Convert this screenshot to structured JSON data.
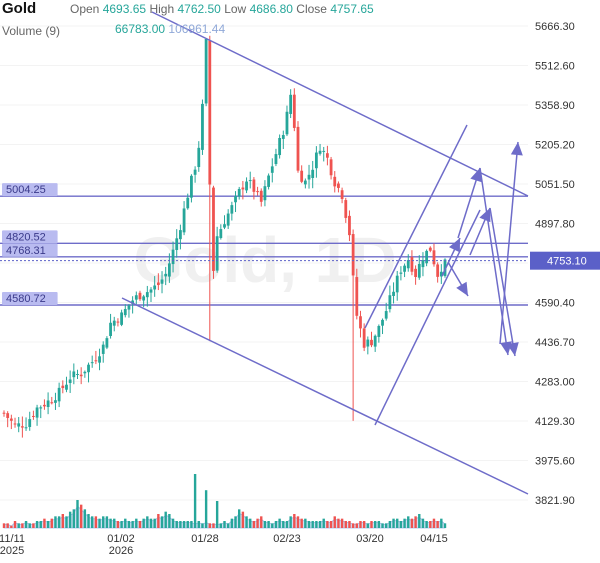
{
  "header": {
    "symbol": "Gold",
    "open_label": "Open",
    "open_value": "4693.65",
    "high_label": "High",
    "high_value": "4762.50",
    "low_label": "Low",
    "low_value": "4686.80",
    "close_label": "Close",
    "close_value": "4757.65",
    "volume_label": "Volume (9)",
    "volume_value_1": "66783.00",
    "volume_value_2": "106961.44"
  },
  "watermark": "Gold, 1D",
  "colors": {
    "up": "#26a69a",
    "down": "#ef5350",
    "drawing": "#6e6cc9",
    "price_tag": "#5b60c8",
    "volume_area": "#bcd3f0"
  },
  "chart_data": {
    "type": "candlestick",
    "title": "Gold",
    "interval": "1D",
    "y_axis_ticks": [
      "5666.30",
      "5512.60",
      "5358.90",
      "5205.20",
      "5051.50",
      "4897.80",
      "4744.10",
      "4590.40",
      "4436.70",
      "4283.00",
      "4129.30",
      "3975.60",
      "3821.90"
    ],
    "ylim": [
      3821.9,
      5666.3
    ],
    "x_axis_ticks": [
      {
        "label": "11/11",
        "sublabel": "2025"
      },
      {
        "label": "01/02",
        "sublabel": "2026"
      },
      {
        "label": "01/28",
        "sublabel": ""
      },
      {
        "label": "02/23",
        "sublabel": ""
      },
      {
        "label": "03/20",
        "sublabel": ""
      },
      {
        "label": "04/15",
        "sublabel": ""
      }
    ],
    "current_price": "4753.10",
    "horizontal_levels": [
      {
        "label": "5004.25",
        "value": 5004.25
      },
      {
        "label": "4820.52",
        "value": 4820.52
      },
      {
        "label": "4768.31",
        "value": 4768.31
      },
      {
        "label": "4580.72",
        "value": 4580.72
      }
    ],
    "last_candle": {
      "open": 4693.65,
      "high": 4762.5,
      "low": 4686.8,
      "close": 4757.65
    },
    "close_path": [
      [
        0,
        4160
      ],
      [
        3,
        4110
      ],
      [
        6,
        4120
      ],
      [
        9,
        4180
      ],
      [
        12,
        4205
      ],
      [
        15,
        4240
      ],
      [
        18,
        4300
      ],
      [
        21,
        4315
      ],
      [
        24,
        4360
      ],
      [
        27,
        4420
      ],
      [
        29,
        4510
      ],
      [
        32,
        4540
      ],
      [
        35,
        4600
      ],
      [
        37,
        4620
      ],
      [
        40,
        4640
      ],
      [
        42,
        4660
      ],
      [
        44,
        4700
      ],
      [
        46,
        4790
      ],
      [
        48,
        4890
      ],
      [
        50,
        5010
      ],
      [
        52,
        5120
      ],
      [
        53,
        5200
      ],
      [
        54,
        5350
      ],
      [
        55,
        5600
      ],
      [
        56,
        5050
      ],
      [
        57,
        4720
      ],
      [
        58,
        4850
      ],
      [
        60,
        4910
      ],
      [
        62,
        4960
      ],
      [
        64,
        5020
      ],
      [
        66,
        5070
      ],
      [
        68,
        5030
      ],
      [
        70,
        4980
      ],
      [
        72,
        5080
      ],
      [
        74,
        5170
      ],
      [
        76,
        5260
      ],
      [
        77,
        5320
      ],
      [
        78,
        5400
      ],
      [
        79,
        5280
      ],
      [
        80,
        5100
      ],
      [
        82,
        5060
      ],
      [
        84,
        5120
      ],
      [
        86,
        5200
      ],
      [
        88,
        5150
      ],
      [
        90,
        5060
      ],
      [
        92,
        5010
      ],
      [
        94,
        4860
      ],
      [
        95,
        4680
      ],
      [
        96,
        4540
      ],
      [
        98,
        4430
      ],
      [
        100,
        4440
      ],
      [
        102,
        4490
      ],
      [
        104,
        4560
      ],
      [
        106,
        4640
      ],
      [
        108,
        4720
      ],
      [
        110,
        4760
      ],
      [
        112,
        4700
      ],
      [
        114,
        4770
      ],
      [
        116,
        4800
      ],
      [
        118,
        4700
      ],
      [
        120,
        4757.65
      ]
    ],
    "volume_series": [
      2,
      2,
      1,
      3,
      2,
      2,
      3,
      2,
      2,
      3,
      3,
      4,
      3,
      4,
      5,
      5,
      6,
      5,
      7,
      8,
      12,
      10,
      8,
      6,
      5,
      5,
      4,
      5,
      5,
      4,
      4,
      3,
      3,
      4,
      3,
      3,
      4,
      3,
      4,
      5,
      4,
      4,
      6,
      5,
      7,
      6,
      4,
      3,
      3,
      3,
      3,
      3,
      2,
      3,
      2,
      3,
      2,
      2,
      2,
      2,
      3,
      2,
      4,
      5,
      8,
      7,
      5,
      4,
      3,
      4,
      5,
      3,
      3,
      2,
      3,
      4,
      3,
      3,
      5,
      6,
      5,
      4,
      4,
      3,
      3,
      3,
      3,
      4,
      3,
      3,
      5,
      4,
      4,
      3,
      3,
      2,
      2,
      3,
      3,
      2,
      3,
      3,
      3,
      2,
      2,
      3,
      4,
      4,
      3,
      4,
      5,
      4,
      5,
      6,
      4,
      3,
      3,
      4,
      3,
      4,
      2
    ],
    "volume_highlights": [
      {
        "index": 52,
        "value": 100
      },
      {
        "index": 55,
        "value": 70
      },
      {
        "index": 58,
        "value": 50
      }
    ]
  }
}
